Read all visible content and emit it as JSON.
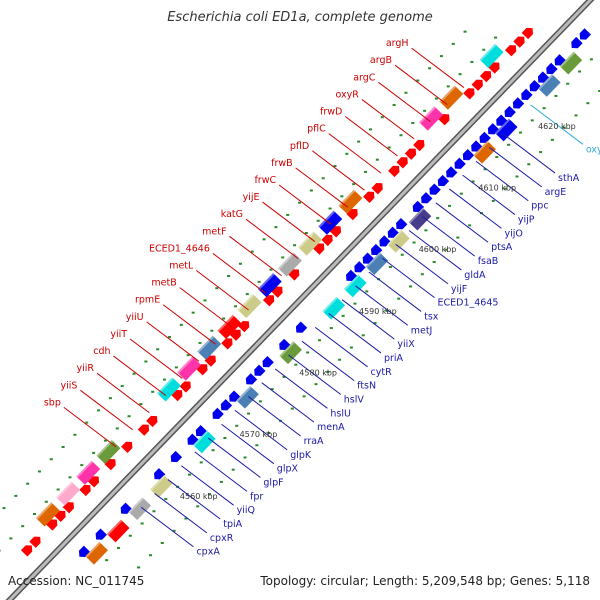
{
  "title": "Escherichia coli ED1a, complete genome",
  "footer": {
    "accession": "Accession: NC_011745",
    "topology": "Topology: circular; Length: 5,209,548 bp; Genes: 5,118"
  },
  "colors": {
    "forward_label": "#cc0000",
    "reverse_label": "#1a1aa6",
    "rna_label": "#33aadd",
    "backbone": "#888888"
  },
  "scale_labels": [
    "4560 kbp",
    "4570 kbp",
    "4580 kbp",
    "4590 kbp",
    "4600 kbp",
    "4610 kbp",
    "4620 kbp"
  ],
  "forward_genes": [
    "argH",
    "argB",
    "argC",
    "oxyR",
    "frwD",
    "pflC",
    "pflD",
    "frwB",
    "frwC",
    "yijE",
    "katG",
    "metF",
    "ECED1_4646",
    "metL",
    "metB",
    "rpmE",
    "yiiU",
    "yiiT",
    "cdh",
    "yiiR",
    "yiiS",
    "sbp"
  ],
  "reverse_genes": [
    "sthA",
    "argE",
    "ppc",
    "yijP",
    "yijO",
    "ptsA",
    "fsaB",
    "gldA",
    "yijF",
    "ECED1_4645",
    "tsx",
    "metJ",
    "yiiX",
    "priA",
    "cytR",
    "ftsN",
    "hslV",
    "hslU",
    "menA",
    "rraA",
    "glpK",
    "glpX",
    "glpF",
    "fpr",
    "yiiQ",
    "tpiA",
    "cpxR",
    "cpxA"
  ],
  "rna_genes": [
    "oxyS"
  ]
}
